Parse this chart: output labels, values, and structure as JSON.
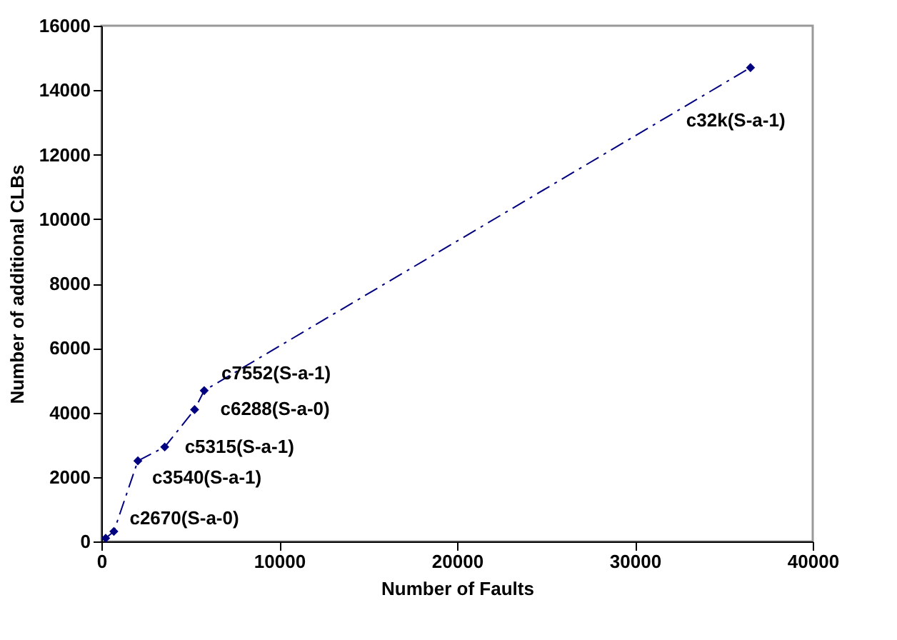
{
  "chart_data": {
    "type": "line",
    "xlabel": "Number of Faults",
    "ylabel": "Number of additional CLBs",
    "x": [
      240,
      700,
      2050,
      3560,
      5240,
      5780,
      36500
    ],
    "series": [
      {
        "color": "#000080",
        "values": [
          100,
          310,
          2500,
          2930,
          4090,
          4680,
          14700
        ]
      }
    ],
    "xlim": [
      0,
      40000
    ],
    "xticks": [
      0,
      10000,
      20000,
      30000,
      40000
    ],
    "ylim": [
      0,
      16000
    ],
    "yticks": [
      0,
      2000,
      4000,
      6000,
      8000,
      10000,
      12000,
      14000,
      16000
    ],
    "grid": false,
    "marker": "diamond",
    "line_style": "dashdot",
    "annotations": [
      {
        "text": "c2670(S-a-0)",
        "x": 700,
        "y": 310
      },
      {
        "text": "c3540(S-a-1)",
        "x": 2050,
        "y": 2500
      },
      {
        "text": "c5315(S-a-1)",
        "x": 3560,
        "y": 2930
      },
      {
        "text": "c6288(S-a-0)",
        "x": 5240,
        "y": 4090
      },
      {
        "text": "c7552(S-a-1)",
        "x": 5780,
        "y": 4680
      },
      {
        "text": "c32k(S-a-1)",
        "x": 36500,
        "y": 14700
      }
    ]
  }
}
